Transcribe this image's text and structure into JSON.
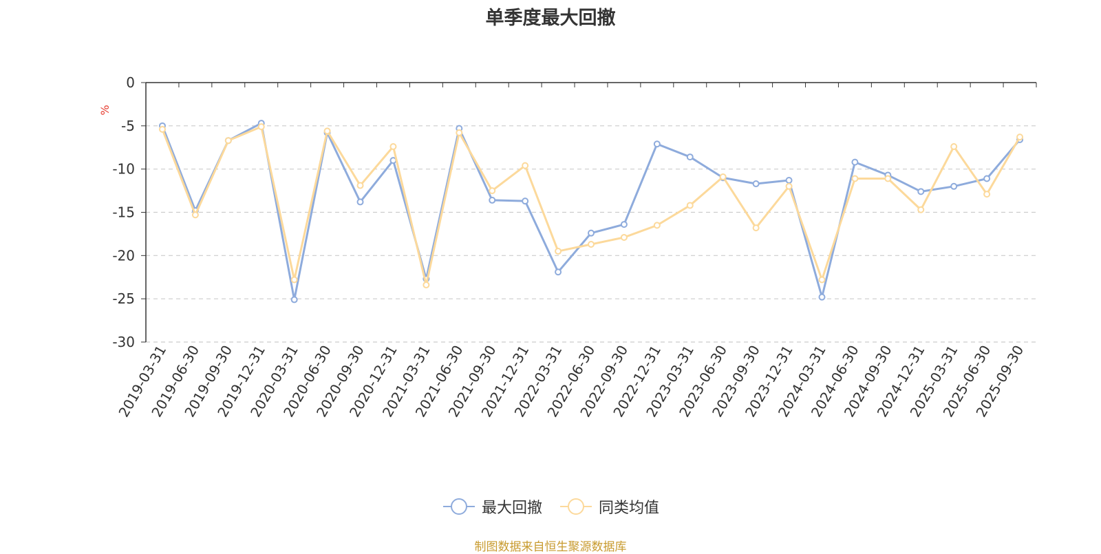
{
  "chart_data": {
    "type": "line",
    "title": "单季度最大回撤",
    "ylabel": "%",
    "xlabel": "",
    "ylim": [
      -30,
      0
    ],
    "yticks": [
      0,
      -5,
      -10,
      -15,
      -20,
      -25,
      -30
    ],
    "grid": true,
    "legend_position": "bottom",
    "categories": [
      "2019-03-31",
      "2019-06-30",
      "2019-09-30",
      "2019-12-31",
      "2020-03-31",
      "2020-06-30",
      "2020-09-30",
      "2020-12-31",
      "2021-03-31",
      "2021-06-30",
      "2021-09-30",
      "2021-12-31",
      "2022-03-31",
      "2022-06-30",
      "2022-09-30",
      "2022-12-31",
      "2023-03-31",
      "2023-06-30",
      "2023-09-30",
      "2023-12-31",
      "2024-03-31",
      "2024-06-30",
      "2024-09-30",
      "2024-12-31",
      "2025-03-31",
      "2025-06-30",
      "2025-09-30"
    ],
    "series": [
      {
        "name": "最大回撤",
        "color": "#8eabdc",
        "values": [
          -5.0,
          -14.8,
          -6.7,
          -4.7,
          -25.1,
          -5.8,
          -13.8,
          -9.0,
          -22.7,
          -5.3,
          -13.6,
          -13.7,
          -21.9,
          -17.4,
          -16.4,
          -7.1,
          -8.6,
          -11.0,
          -11.7,
          -11.3,
          -24.8,
          -9.2,
          -10.7,
          -12.6,
          -12.0,
          -11.1,
          -6.6
        ]
      },
      {
        "name": "同类均值",
        "color": "#fcd99b",
        "values": [
          -5.4,
          -15.3,
          -6.7,
          -5.1,
          -22.8,
          -5.6,
          -11.9,
          -7.4,
          -23.4,
          -5.8,
          -12.5,
          -9.6,
          -19.5,
          -18.7,
          -17.9,
          -16.5,
          -14.2,
          -10.9,
          -16.8,
          -12.0,
          -22.8,
          -11.1,
          -11.1,
          -14.7,
          -7.4,
          -12.9,
          -6.3
        ]
      }
    ]
  },
  "legend": {
    "series1": "最大回撤",
    "series2": "同类均值"
  },
  "source": "制图数据来自恒生聚源数据库"
}
